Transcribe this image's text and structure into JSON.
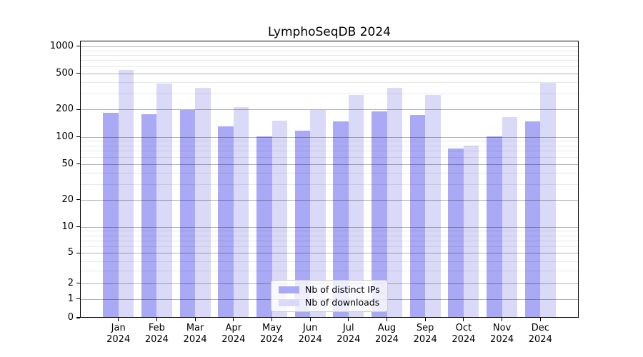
{
  "figure_title": "LymphoSeqDB 2024",
  "chart_data": {
    "type": "bar",
    "title": "LymphoSeqDB 2024",
    "categories": [
      "Jan",
      "Feb",
      "Mar",
      "Apr",
      "May",
      "Jun",
      "Jul",
      "Aug",
      "Sep",
      "Oct",
      "Nov",
      "Dec"
    ],
    "x_tick_second_line": "2024",
    "xlabel": "",
    "ylabel": "",
    "series": [
      {
        "name": "Nb of distinct IPs",
        "color": "#a9a9f6",
        "values": [
          184,
          178,
          197,
          131,
          101,
          117,
          148,
          192,
          174,
          74,
          101,
          148
        ]
      },
      {
        "name": "Nb of downloads",
        "color": "#dadaf8",
        "values": [
          551,
          390,
          347,
          211,
          151,
          197,
          289,
          350,
          291,
          79,
          164,
          396
        ]
      }
    ],
    "yscale": "symlog",
    "y_ticks": [
      0,
      1,
      2,
      5,
      10,
      20,
      50,
      100,
      200,
      500,
      1000
    ],
    "y_minor_gridlines": [
      3,
      4,
      6,
      7,
      8,
      9,
      30,
      40,
      60,
      70,
      80,
      90,
      300,
      400,
      600,
      700,
      800,
      900
    ],
    "ylim": [
      0,
      1150
    ],
    "grid": true,
    "legend_position": "lower center"
  }
}
